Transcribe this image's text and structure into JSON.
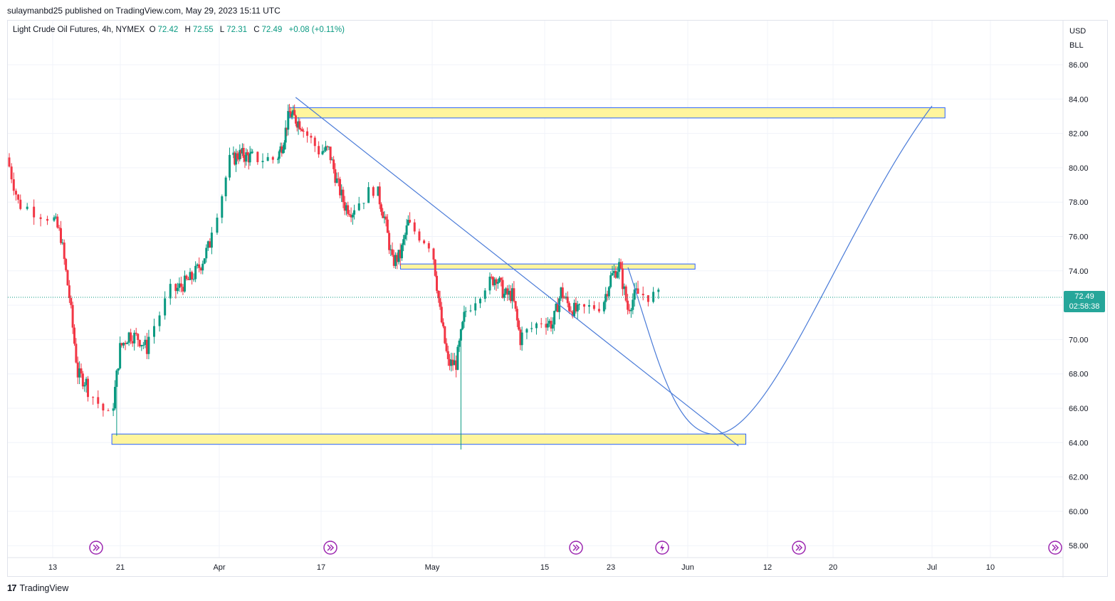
{
  "publisher_line": "sulaymanbd25 published on TradingView.com, May 29, 2023 15:11 UTC",
  "legend": {
    "symbol": "Light Crude Oil Futures, 4h, NYMEX",
    "o_label": "O",
    "o": "72.42",
    "h_label": "H",
    "h": "72.55",
    "l_label": "L",
    "l": "72.31",
    "c_label": "C",
    "c": "72.49",
    "change": "+0.08 (+0.11%)"
  },
  "currency": "USD",
  "unit": "BLL",
  "last_price": {
    "price": "72.49",
    "countdown": "02:58:38"
  },
  "footer": {
    "logo_text": "17",
    "brand": "TradingView"
  },
  "colors": {
    "up": "#089981",
    "down": "#f23645",
    "drawing": "#4a7bd8",
    "zone_fill": "#fff59d",
    "zone_border": "#2962ff",
    "event_icon": "#9c27b0"
  },
  "icons": [
    "dividend-arrow-icon",
    "dividend-arrow-icon",
    "dividend-arrow-icon",
    "earnings-flash-icon",
    "dividend-arrow-icon",
    "dividend-arrow-icon"
  ],
  "chart_data": {
    "type": "candlestick",
    "y_axis_ticks": [
      "86.00",
      "84.00",
      "82.00",
      "80.00",
      "78.00",
      "76.00",
      "74.00",
      "72.00",
      "70.00",
      "68.00",
      "66.00",
      "64.00",
      "62.00",
      "60.00",
      "58.00"
    ],
    "x_axis_ticks": [
      "13",
      "21",
      "Apr",
      "17",
      "May",
      "15",
      "23",
      "Jun",
      "12",
      "20",
      "Jul",
      "10"
    ],
    "ylim": [
      57.3,
      87.5
    ],
    "grid": true,
    "price_path": [
      [
        "Mar 9",
        80.6
      ],
      [
        "Mar 10",
        78.0
      ],
      [
        "Mar 13",
        77.2
      ],
      [
        "Mar 14",
        76.0
      ],
      [
        "Mar 15",
        72.5
      ],
      [
        "Mar 16",
        68.0
      ],
      [
        "Mar 17",
        67.5
      ],
      [
        "Mar 20",
        65.5
      ],
      [
        "Mar 21",
        69.5
      ],
      [
        "Mar 22",
        70.3
      ],
      [
        "Mar 23",
        70.1
      ],
      [
        "Mar 24",
        69.5
      ],
      [
        "Mar 27",
        72.8
      ],
      [
        "Mar 28",
        73.2
      ],
      [
        "Mar 29",
        73.6
      ],
      [
        "Mar 30",
        74.4
      ],
      [
        "Mar 31",
        75.6
      ],
      [
        "Apr 3",
        80.4
      ],
      [
        "Apr 4",
        80.8
      ],
      [
        "Apr 5",
        80.7
      ],
      [
        "Apr 6",
        80.6
      ],
      [
        "Apr 10",
        80.5
      ],
      [
        "Apr 11",
        81.5
      ],
      [
        "Apr 12",
        83.2
      ],
      [
        "Apr 13",
        82.8
      ],
      [
        "Apr 14",
        82.5
      ],
      [
        "Apr 17",
        81.0
      ],
      [
        "Apr 18",
        81.0
      ],
      [
        "Apr 19",
        79.2
      ],
      [
        "Apr 20",
        77.8
      ],
      [
        "Apr 21",
        77.5
      ],
      [
        "Apr 24",
        78.8
      ],
      [
        "Apr 25",
        77.1
      ],
      [
        "Apr 26",
        74.5
      ],
      [
        "Apr 27",
        74.9
      ],
      [
        "Apr 28",
        76.8
      ],
      [
        "May 1",
        75.6
      ],
      [
        "May 2",
        71.6
      ],
      [
        "May 3",
        68.6
      ],
      [
        "May 4",
        68.6
      ],
      [
        "May 5",
        71.3
      ],
      [
        "May 8",
        73.2
      ],
      [
        "May 9",
        73.7
      ],
      [
        "May 10",
        72.6
      ],
      [
        "May 11",
        72.6
      ],
      [
        "May 12",
        70.0
      ],
      [
        "May 15",
        71.1
      ],
      [
        "May 16",
        70.9
      ],
      [
        "May 17",
        72.8
      ],
      [
        "May 18",
        71.9
      ],
      [
        "May 19",
        71.6
      ],
      [
        "May 22",
        72.0
      ],
      [
        "May 23",
        73.6
      ],
      [
        "May 24",
        74.3
      ],
      [
        "May 25",
        71.8
      ],
      [
        "May 26",
        72.7
      ],
      [
        "May 29",
        72.49
      ]
    ],
    "notable_lows": [
      [
        "Mar 20",
        64.4
      ],
      [
        "May 4",
        63.6
      ]
    ],
    "horizontal_zones": [
      {
        "from": "Apr 12",
        "to": "Jul 3",
        "low": 82.9,
        "high": 83.5
      },
      {
        "from": "Apr 27",
        "to": "Jun 2",
        "low": 74.1,
        "high": 74.4
      },
      {
        "from": "Mar 20",
        "to": "Jun 9",
        "low": 63.9,
        "high": 64.5
      }
    ],
    "trend_line": {
      "from": [
        "Apr 13",
        84.1
      ],
      "to": [
        "Jun 8",
        63.8
      ]
    },
    "projection_curve": {
      "from": [
        "May 25",
        74.2
      ],
      "bottom": [
        "Jun 5",
        64.5
      ],
      "to": [
        "Jul 1",
        83.6
      ]
    }
  }
}
